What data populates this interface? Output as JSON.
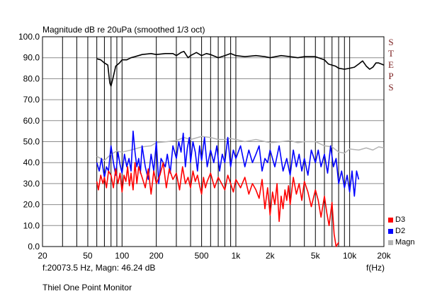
{
  "title": "Magnitude dB re 20uPa (smoothed  1/3 oct)",
  "brand": "STEPS",
  "cursor_readout": "f:20073.5 Hz, Magn: 46.24 dB",
  "footer": "Thiel One Point Monitor",
  "colors": {
    "d3": "#ff0000",
    "d2": "#0000ff",
    "magn": "#b4b4b4",
    "main": "#000000",
    "brand": "#7a1e1e"
  },
  "chart_data": {
    "type": "line",
    "title": "Magnitude dB re 20uPa (smoothed  1/3 oct)",
    "xlabel": "f(Hz)",
    "ylabel": "",
    "x_scale": "log",
    "xlim": [
      20,
      20000
    ],
    "ylim": [
      0,
      100
    ],
    "grid": true,
    "y_ticks": [
      "100.0",
      "90.0",
      "80.0",
      "70.0",
      "60.0",
      "50.0",
      "40.0",
      "30.0",
      "20.0",
      "10.0",
      "0.0"
    ],
    "x_ticks": [
      {
        "v": 20,
        "label": "20"
      },
      {
        "v": 50,
        "label": "50"
      },
      {
        "v": 100,
        "label": "100"
      },
      {
        "v": 200,
        "label": "200"
      },
      {
        "v": 500,
        "label": "500"
      },
      {
        "v": 1000,
        "label": "1k"
      },
      {
        "v": 2000,
        "label": "2k"
      },
      {
        "v": 5000,
        "label": "5k"
      },
      {
        "v": 10000,
        "label": "10k"
      },
      {
        "v": 20000,
        "label": "20k"
      }
    ],
    "legend": [
      {
        "label": "D3",
        "color": "#ff0000"
      },
      {
        "label": "D2",
        "color": "#0000ff"
      },
      {
        "label": "Magn",
        "color": "#b4b4b4"
      }
    ],
    "series": [
      {
        "name": "Magnitude",
        "color": "#000000",
        "x": [
          60,
          65,
          70,
          75,
          78,
          80,
          83,
          88,
          95,
          100,
          110,
          120,
          130,
          150,
          180,
          200,
          240,
          280,
          300,
          330,
          350,
          380,
          400,
          450,
          500,
          550,
          600,
          700,
          800,
          900,
          1000,
          1200,
          1500,
          1800,
          2000,
          2500,
          3000,
          3500,
          4000,
          5000,
          6000,
          6500,
          7000,
          7500,
          8000,
          9000,
          10000,
          11000,
          12000,
          13000,
          14000,
          15000,
          16000,
          17000,
          18000,
          19000,
          20000
        ],
        "y": [
          89.5,
          89,
          87.5,
          86.5,
          78,
          76.5,
          80,
          86,
          87.5,
          89,
          89,
          90,
          90.5,
          91.5,
          92,
          91.5,
          92,
          92,
          91,
          92.5,
          93,
          90,
          91,
          92.5,
          91,
          92,
          91.5,
          90,
          91,
          92,
          91,
          90.5,
          91,
          90.5,
          90,
          91,
          90.5,
          90,
          90.5,
          90.5,
          89,
          87,
          86.5,
          86,
          85,
          84.5,
          85,
          85.5,
          87,
          88.5,
          86,
          84.5,
          85.5,
          87.5,
          87.5,
          87,
          86.5
        ]
      },
      {
        "name": "Magn",
        "color": "#b4b4b4",
        "x": [
          60,
          70,
          80,
          90,
          100,
          120,
          150,
          180,
          200,
          250,
          300,
          350,
          400,
          500,
          600,
          700,
          800,
          900,
          1000,
          1200,
          1500,
          2000,
          2500,
          3000,
          3500,
          4000,
          5000,
          6000,
          7000,
          8000,
          9000,
          10000,
          12000,
          14000,
          16000,
          18000,
          20000
        ],
        "y": [
          43,
          41,
          44,
          45.5,
          45,
          46,
          47.5,
          48,
          49.5,
          50,
          50.5,
          52,
          51,
          52.5,
          52,
          51,
          51,
          51.5,
          51,
          50,
          51,
          49.5,
          50,
          50.5,
          49.5,
          50,
          50,
          48,
          47.5,
          45,
          44.5,
          46.5,
          46,
          47,
          46,
          47.5,
          47
        ]
      },
      {
        "name": "D2",
        "color": "#0000ff",
        "x": [
          60,
          63,
          66,
          70,
          73,
          76,
          80,
          84,
          88,
          92,
          96,
          100,
          105,
          110,
          115,
          120,
          125,
          130,
          135,
          140,
          145,
          150,
          160,
          170,
          180,
          190,
          200,
          210,
          220,
          230,
          240,
          250,
          265,
          280,
          300,
          315,
          330,
          345,
          360,
          375,
          390,
          400,
          420,
          440,
          460,
          480,
          500,
          530,
          560,
          600,
          640,
          680,
          720,
          760,
          800,
          850,
          900,
          950,
          1000,
          1100,
          1200,
          1300,
          1400,
          1500,
          1600,
          1700,
          1800,
          1900,
          2000,
          2200,
          2400,
          2600,
          2800,
          3000,
          3200,
          3400,
          3600,
          3800,
          4000,
          4300,
          4600,
          5000,
          5300,
          5600,
          6000,
          6400,
          6800,
          7200,
          7600,
          8000,
          8500,
          9000,
          9500,
          10000,
          10500,
          11000,
          11500,
          12000
        ],
        "y": [
          40,
          36,
          42,
          33,
          38,
          36,
          48,
          40,
          34,
          45,
          39,
          35,
          44,
          38,
          42,
          36,
          55,
          45,
          38,
          42,
          35,
          48,
          38,
          32,
          44,
          36,
          50,
          30,
          42,
          40,
          38,
          44,
          35,
          48,
          42,
          50,
          45,
          54,
          38,
          47,
          52,
          40,
          50,
          45,
          36,
          48,
          41,
          52,
          38,
          46,
          40,
          48,
          36,
          44,
          40,
          52,
          38,
          46,
          42,
          48,
          38,
          46,
          40,
          44,
          48,
          36,
          42,
          40,
          46,
          38,
          48,
          36,
          42,
          34,
          46,
          38,
          44,
          36,
          42,
          34,
          46,
          40,
          46,
          38,
          44,
          35,
          48,
          38,
          42,
          30,
          36,
          28,
          34,
          26,
          36,
          24,
          36,
          32
        ]
      },
      {
        "name": "D3",
        "color": "#ff0000",
        "x": [
          60,
          62,
          65,
          68,
          70,
          73,
          76,
          80,
          84,
          88,
          92,
          96,
          100,
          104,
          108,
          112,
          116,
          120,
          125,
          130,
          135,
          140,
          150,
          160,
          170,
          180,
          190,
          200,
          215,
          230,
          245,
          260,
          280,
          300,
          320,
          340,
          360,
          380,
          400,
          420,
          440,
          460,
          480,
          500,
          520,
          540,
          560,
          600,
          650,
          700,
          750,
          800,
          850,
          900,
          950,
          1000,
          1100,
          1200,
          1300,
          1400,
          1500,
          1600,
          1700,
          1800,
          1900,
          2000,
          2100,
          2200,
          2300,
          2400,
          2500,
          2600,
          2700,
          2800,
          2900,
          3000,
          3200,
          3400,
          3600,
          3800,
          4000,
          4300,
          4600,
          5000,
          5300,
          5600,
          6000,
          6300,
          6600,
          7000,
          7300,
          7600,
          8000
        ],
        "y": [
          31,
          27,
          34,
          30,
          33,
          28,
          36,
          34,
          28,
          37,
          30,
          35,
          26,
          34,
          31,
          38,
          29,
          35,
          27,
          40,
          30,
          38,
          33,
          28,
          37,
          25,
          36,
          30,
          34,
          40,
          28,
          37,
          32,
          35,
          27,
          38,
          30,
          33,
          28,
          36,
          31,
          34,
          29,
          25,
          33,
          28,
          31,
          35,
          28,
          33,
          30,
          27,
          34,
          30,
          26,
          32,
          28,
          33,
          25,
          30,
          27,
          23,
          32,
          18,
          28,
          15,
          26,
          20,
          30,
          12,
          24,
          18,
          27,
          22,
          29,
          20,
          33,
          25,
          30,
          22,
          31,
          26,
          19,
          27,
          22,
          14,
          24,
          16,
          10,
          21,
          6,
          0,
          2
        ]
      }
    ]
  }
}
